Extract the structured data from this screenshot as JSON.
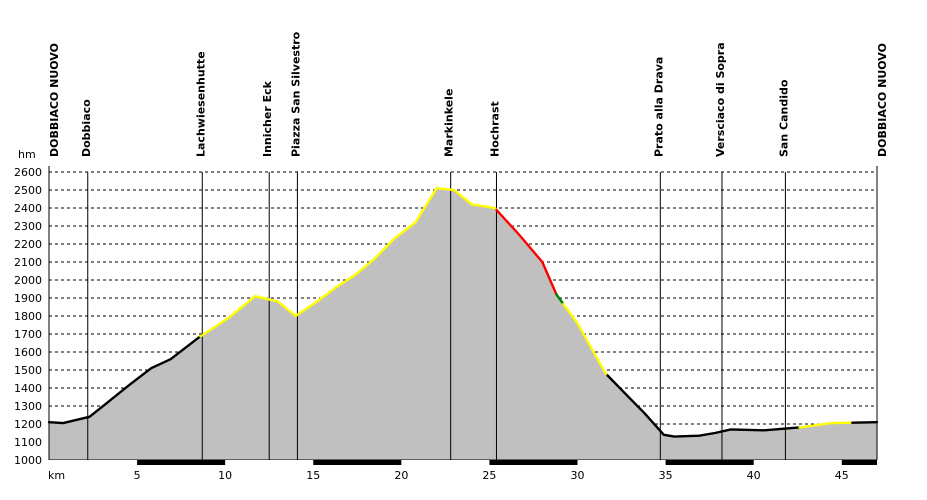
{
  "chart_data": {
    "type": "area",
    "ylabel": "hm",
    "xlabel": "km",
    "xlim": [
      0,
      47
    ],
    "ylim": [
      1000,
      2600
    ],
    "y_ticks": [
      1000,
      1100,
      1200,
      1300,
      1400,
      1500,
      1600,
      1700,
      1800,
      1900,
      2000,
      2100,
      2200,
      2300,
      2400,
      2500,
      2600
    ],
    "x_ticks": [
      5,
      10,
      15,
      20,
      25,
      30,
      35,
      40,
      45
    ],
    "grid": true,
    "fill_color": "#c0c0c0",
    "profile": [
      [
        0,
        1210
      ],
      [
        0.8,
        1205
      ],
      [
        2.3,
        1240
      ],
      [
        3.2,
        1310
      ],
      [
        4.6,
        1420
      ],
      [
        5.8,
        1510
      ],
      [
        6.9,
        1560
      ],
      [
        8.5,
        1680
      ],
      [
        10.2,
        1790
      ],
      [
        11.7,
        1910
      ],
      [
        13.0,
        1880
      ],
      [
        14.0,
        1800
      ],
      [
        15.2,
        1880
      ],
      [
        16.3,
        1960
      ],
      [
        17.4,
        2030
      ],
      [
        18.5,
        2120
      ],
      [
        19.6,
        2230
      ],
      [
        20.8,
        2320
      ],
      [
        22.0,
        2510
      ],
      [
        23.0,
        2500
      ],
      [
        24.0,
        2420
      ],
      [
        25.3,
        2400
      ],
      [
        26.7,
        2250
      ],
      [
        28.0,
        2100
      ],
      [
        28.8,
        1920
      ],
      [
        30.0,
        1760
      ],
      [
        31.6,
        1480
      ],
      [
        32.8,
        1360
      ],
      [
        33.8,
        1260
      ],
      [
        34.9,
        1140
      ],
      [
        35.5,
        1130
      ],
      [
        36.9,
        1135
      ],
      [
        37.8,
        1150
      ],
      [
        38.7,
        1170
      ],
      [
        40.6,
        1165
      ],
      [
        42.5,
        1180
      ],
      [
        44.4,
        1205
      ],
      [
        47,
        1210
      ]
    ],
    "segments": [
      {
        "from": 0,
        "to": 8.6,
        "color": "#000000"
      },
      {
        "from": 8.6,
        "to": 25.4,
        "color": "#ffff00"
      },
      {
        "from": 25.4,
        "to": 28.8,
        "color": "#ff0000"
      },
      {
        "from": 28.8,
        "to": 29.2,
        "color": "#008000"
      },
      {
        "from": 29.2,
        "to": 31.7,
        "color": "#ffff00"
      },
      {
        "from": 31.7,
        "to": 42.6,
        "color": "#000000"
      },
      {
        "from": 42.6,
        "to": 45.6,
        "color": "#ffff00"
      },
      {
        "from": 45.6,
        "to": 47,
        "color": "#000000"
      }
    ],
    "distance_bar": [
      [
        5,
        10
      ],
      [
        15,
        20
      ],
      [
        25,
        30
      ],
      [
        35,
        40
      ],
      [
        45,
        47
      ]
    ],
    "waypoints": [
      {
        "name": "DOBBIACO NUOVO",
        "km": 0
      },
      {
        "name": "Dobbiaco",
        "km": 2.2
      },
      {
        "name": "Lachwiesenhutte",
        "km": 8.7
      },
      {
        "name": "Innicher Eck",
        "km": 12.5
      },
      {
        "name": "Piazza San Silvestro",
        "km": 14.1
      },
      {
        "name": "Markinkele",
        "km": 22.8
      },
      {
        "name": "Hochrast",
        "km": 25.4
      },
      {
        "name": "Prato alla Drava",
        "km": 34.7
      },
      {
        "name": "Versciaco di Sopra",
        "km": 38.2
      },
      {
        "name": "San Candido",
        "km": 41.8
      },
      {
        "name": "DOBBIACO NUOVO",
        "km": 47
      }
    ]
  }
}
